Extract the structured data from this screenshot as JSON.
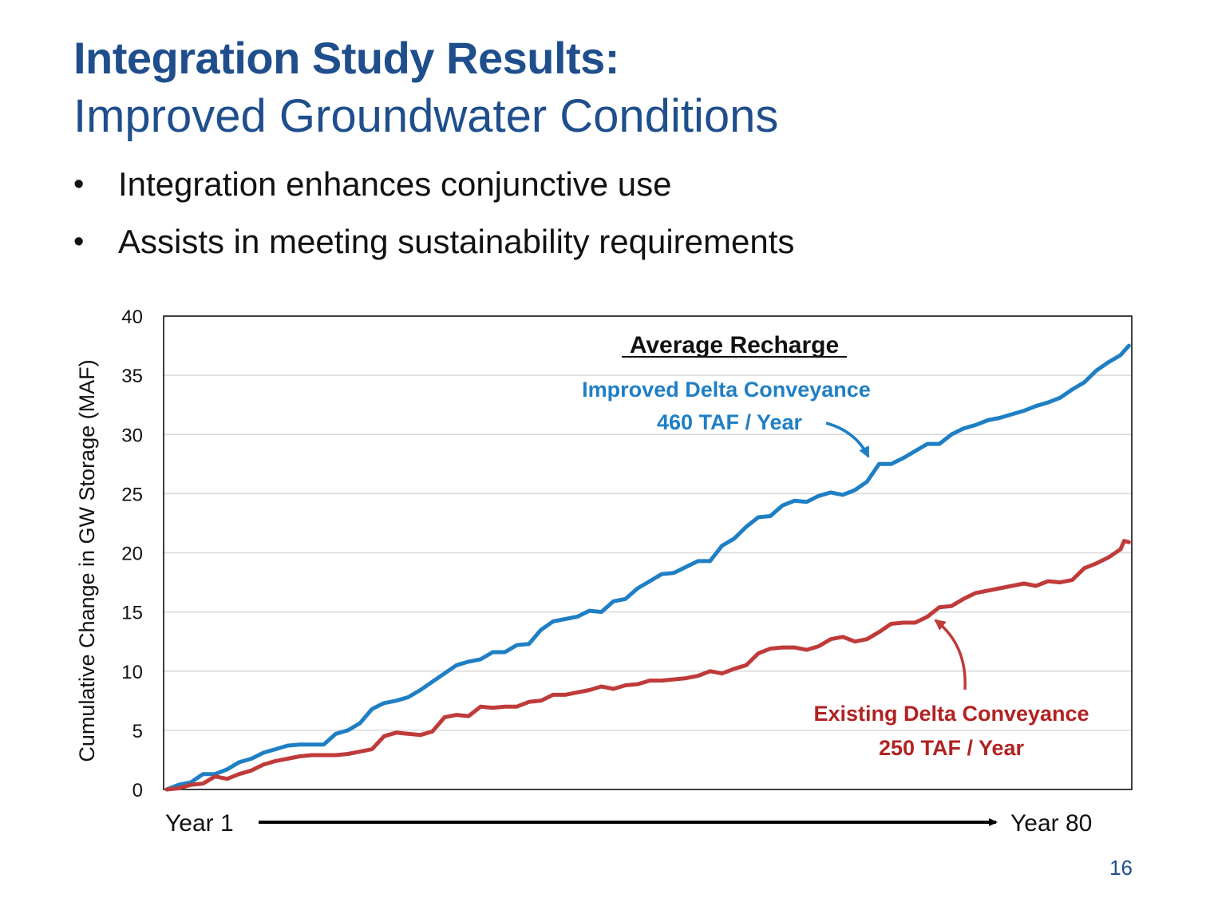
{
  "slide": {
    "title_bold": "Integration Study Results:",
    "title_sub": "Improved Groundwater Conditions",
    "bullets": [
      "Integration enhances conjunctive use",
      "Assists in meeting sustainability requirements"
    ],
    "page_number": "16"
  },
  "colors": {
    "title": "#1f4e8c",
    "improved": "#1f7fc4",
    "existing": "#bf3b3a",
    "existing_label": "#b22222",
    "grid": "#d9d9d9"
  },
  "chart_data": {
    "type": "line",
    "ylabel": "Cumulative Change in GW Storage (MAF)",
    "ylim": [
      0,
      40
    ],
    "yticks": [
      0,
      5,
      10,
      15,
      20,
      25,
      30,
      35,
      40
    ],
    "x_start_label": "Year 1",
    "x_end_label": "Year 80",
    "xlim": [
      1,
      80
    ],
    "annotation_heading": "Average Recharge",
    "series": [
      {
        "name": "Improved Delta Conveyance",
        "label_line1": "Improved Delta Conveyance",
        "label_line2": "460 TAF / Year",
        "color": "#1f7fc4",
        "points": [
          [
            1,
            0
          ],
          [
            2,
            0.4
          ],
          [
            3,
            0.6
          ],
          [
            4,
            1.3
          ],
          [
            5,
            1.3
          ],
          [
            6,
            1.7
          ],
          [
            7,
            2.3
          ],
          [
            8,
            2.6
          ],
          [
            9,
            3.1
          ],
          [
            10,
            3.4
          ],
          [
            11,
            3.7
          ],
          [
            12,
            3.8
          ],
          [
            13,
            3.8
          ],
          [
            14,
            3.8
          ],
          [
            15,
            4.7
          ],
          [
            16,
            5.0
          ],
          [
            17,
            5.6
          ],
          [
            18,
            6.8
          ],
          [
            19,
            7.3
          ],
          [
            20,
            7.5
          ],
          [
            21,
            7.8
          ],
          [
            22,
            8.4
          ],
          [
            23,
            9.1
          ],
          [
            24,
            9.8
          ],
          [
            25,
            10.5
          ],
          [
            26,
            10.8
          ],
          [
            27,
            11.0
          ],
          [
            28,
            11.6
          ],
          [
            29,
            11.6
          ],
          [
            30,
            12.2
          ],
          [
            31,
            12.3
          ],
          [
            32,
            13.5
          ],
          [
            33,
            14.2
          ],
          [
            34,
            14.4
          ],
          [
            35,
            14.6
          ],
          [
            36,
            15.1
          ],
          [
            37,
            15.0
          ],
          [
            38,
            15.9
          ],
          [
            39,
            16.1
          ],
          [
            40,
            17.0
          ],
          [
            41,
            17.6
          ],
          [
            42,
            18.2
          ],
          [
            43,
            18.3
          ],
          [
            44,
            18.8
          ],
          [
            45,
            19.3
          ],
          [
            46,
            19.3
          ],
          [
            47,
            20.6
          ],
          [
            48,
            21.2
          ],
          [
            49,
            22.2
          ],
          [
            50,
            23.0
          ],
          [
            51,
            23.1
          ],
          [
            52,
            24.0
          ],
          [
            53,
            24.4
          ],
          [
            54,
            24.3
          ],
          [
            55,
            24.8
          ],
          [
            56,
            25.1
          ],
          [
            57,
            24.9
          ],
          [
            58,
            25.3
          ],
          [
            59,
            26.0
          ],
          [
            60,
            27.5
          ],
          [
            61,
            27.5
          ],
          [
            62,
            28.0
          ],
          [
            63,
            28.6
          ],
          [
            64,
            29.2
          ],
          [
            65,
            29.2
          ],
          [
            66,
            30.0
          ],
          [
            67,
            30.5
          ],
          [
            68,
            30.8
          ],
          [
            69,
            31.2
          ],
          [
            70,
            31.4
          ],
          [
            71,
            31.7
          ],
          [
            72,
            32.0
          ],
          [
            73,
            32.4
          ],
          [
            74,
            32.7
          ],
          [
            75,
            33.1
          ],
          [
            76,
            33.8
          ],
          [
            77,
            34.4
          ],
          [
            78,
            35.4
          ],
          [
            79,
            36.1
          ],
          [
            80,
            36.7
          ],
          [
            80.7,
            37.5
          ]
        ]
      },
      {
        "name": "Existing Delta Conveyance",
        "label_line1": "Existing Delta Conveyance",
        "label_line2": "250 TAF / Year",
        "color": "#bf3b3a",
        "points": [
          [
            1,
            0
          ],
          [
            2,
            0.1
          ],
          [
            3,
            0.4
          ],
          [
            4,
            0.5
          ],
          [
            5,
            1.1
          ],
          [
            6,
            0.9
          ],
          [
            7,
            1.3
          ],
          [
            8,
            1.6
          ],
          [
            9,
            2.1
          ],
          [
            10,
            2.4
          ],
          [
            11,
            2.6
          ],
          [
            12,
            2.8
          ],
          [
            13,
            2.9
          ],
          [
            14,
            2.9
          ],
          [
            15,
            2.9
          ],
          [
            16,
            3.0
          ],
          [
            17,
            3.2
          ],
          [
            18,
            3.4
          ],
          [
            19,
            4.5
          ],
          [
            20,
            4.8
          ],
          [
            21,
            4.7
          ],
          [
            22,
            4.6
          ],
          [
            23,
            4.9
          ],
          [
            24,
            6.1
          ],
          [
            25,
            6.3
          ],
          [
            26,
            6.2
          ],
          [
            27,
            7.0
          ],
          [
            28,
            6.9
          ],
          [
            29,
            7.0
          ],
          [
            30,
            7.0
          ],
          [
            31,
            7.4
          ],
          [
            32,
            7.5
          ],
          [
            33,
            8.0
          ],
          [
            34,
            8.0
          ],
          [
            35,
            8.2
          ],
          [
            36,
            8.4
          ],
          [
            37,
            8.7
          ],
          [
            38,
            8.5
          ],
          [
            39,
            8.8
          ],
          [
            40,
            8.9
          ],
          [
            41,
            9.2
          ],
          [
            42,
            9.2
          ],
          [
            43,
            9.3
          ],
          [
            44,
            9.4
          ],
          [
            45,
            9.6
          ],
          [
            46,
            10.0
          ],
          [
            47,
            9.8
          ],
          [
            48,
            10.2
          ],
          [
            49,
            10.5
          ],
          [
            50,
            11.5
          ],
          [
            51,
            11.9
          ],
          [
            52,
            12.0
          ],
          [
            53,
            12.0
          ],
          [
            54,
            11.8
          ],
          [
            55,
            12.1
          ],
          [
            56,
            12.7
          ],
          [
            57,
            12.9
          ],
          [
            58,
            12.5
          ],
          [
            59,
            12.7
          ],
          [
            60,
            13.3
          ],
          [
            61,
            14.0
          ],
          [
            62,
            14.1
          ],
          [
            63,
            14.1
          ],
          [
            64,
            14.6
          ],
          [
            65,
            15.4
          ],
          [
            66,
            15.5
          ],
          [
            67,
            16.1
          ],
          [
            68,
            16.6
          ],
          [
            69,
            16.8
          ],
          [
            70,
            17.0
          ],
          [
            71,
            17.2
          ],
          [
            72,
            17.4
          ],
          [
            73,
            17.2
          ],
          [
            74,
            17.6
          ],
          [
            75,
            17.5
          ],
          [
            76,
            17.7
          ],
          [
            77,
            18.7
          ],
          [
            78,
            19.1
          ],
          [
            79,
            19.6
          ],
          [
            80,
            20.3
          ],
          [
            80.3,
            21.0
          ],
          [
            80.7,
            20.9
          ]
        ]
      }
    ]
  }
}
